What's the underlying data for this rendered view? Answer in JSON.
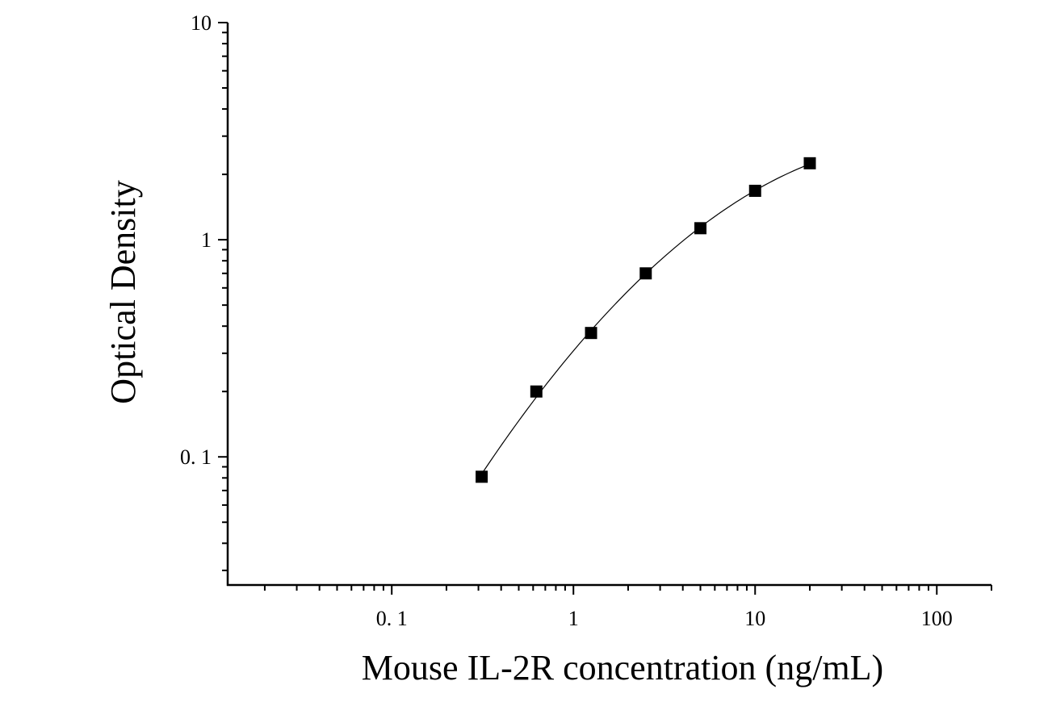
{
  "chart_data": {
    "type": "scatter",
    "title": "",
    "xlabel": "Mouse IL-2R concentration (ng/mL)",
    "ylabel": "Optical Density",
    "x_scale": "log",
    "y_scale": "log",
    "xlim": [
      0.0125,
      200
    ],
    "ylim": [
      0.0257,
      10
    ],
    "x_ticks": [
      {
        "value": 0.1,
        "label": "0. 1"
      },
      {
        "value": 1,
        "label": "1"
      },
      {
        "value": 10,
        "label": "10"
      },
      {
        "value": 100,
        "label": "100"
      }
    ],
    "y_ticks": [
      {
        "value": 0.1,
        "label": "0. 1"
      },
      {
        "value": 1,
        "label": "1"
      },
      {
        "value": 10,
        "label": "10"
      }
    ],
    "grid": false,
    "legend": "none",
    "series": [
      {
        "marker": "square",
        "color": "#000000",
        "fit_line": true,
        "x": [
          0.3125,
          0.625,
          1.25,
          2.5,
          5,
          10,
          20
        ],
        "y": [
          0.081,
          0.2,
          0.372,
          0.7,
          1.13,
          1.68,
          2.25
        ]
      }
    ]
  }
}
